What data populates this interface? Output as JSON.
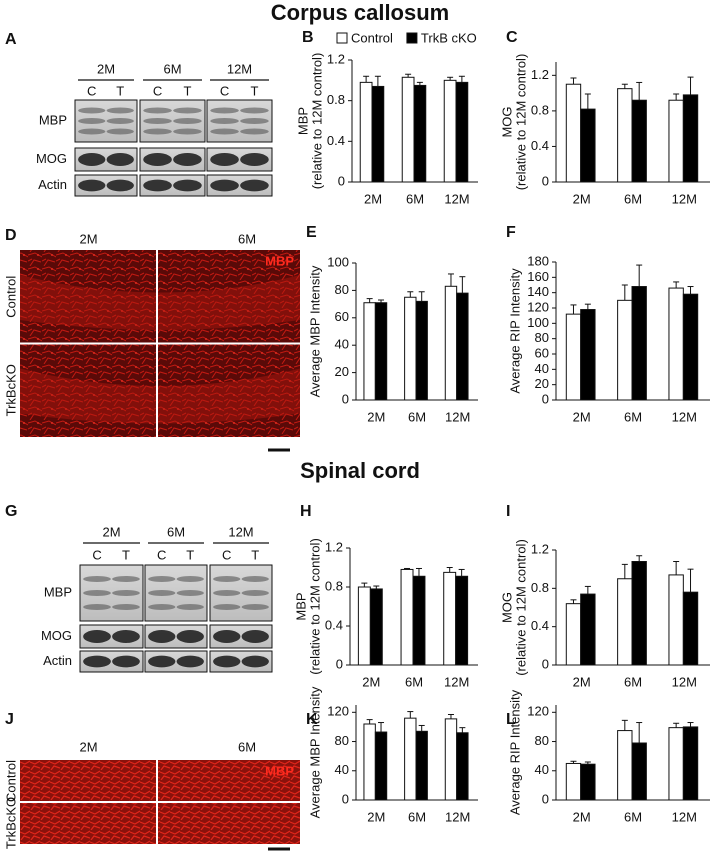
{
  "sections": [
    {
      "title": "Corpus callosum"
    },
    {
      "title": "Spinal cord"
    }
  ],
  "blots": [
    {
      "panel": "A",
      "ages": [
        "2M",
        "6M",
        "12M"
      ],
      "lanes": [
        "C",
        "T"
      ],
      "rows": [
        "MBP",
        "MOG",
        "Actin"
      ]
    },
    {
      "panel": "G",
      "ages": [
        "2M",
        "6M",
        "12M"
      ],
      "lanes": [
        "C",
        "T"
      ],
      "rows": [
        "MBP",
        "MOG",
        "Actin"
      ]
    }
  ],
  "images": [
    {
      "panel": "D",
      "columns": [
        "2M",
        "6M"
      ],
      "rows": [
        "Control",
        "TrkBcKO"
      ],
      "stain": "MBP"
    },
    {
      "panel": "J",
      "columns": [
        "2M",
        "6M"
      ],
      "rows": [
        "Control",
        "TrkBcKO"
      ],
      "stain": "MBP"
    }
  ],
  "chart_data": [
    {
      "type": "bar",
      "panel": "B",
      "ylabel": [
        "MBP",
        "(relative to 12M control)"
      ],
      "categories": [
        "2M",
        "6M",
        "12M"
      ],
      "ylim": [
        0,
        1.2
      ],
      "yticks": [
        0,
        0.4,
        0.8,
        1.2
      ],
      "series": [
        {
          "name": "Control",
          "color": "#ffffff",
          "values": [
            0.98,
            1.03,
            1.0
          ],
          "errors": [
            0.06,
            0.03,
            0.03
          ]
        },
        {
          "name": "TrkB cKO",
          "color": "#000000",
          "values": [
            0.94,
            0.95,
            0.98
          ],
          "errors": [
            0.1,
            0.03,
            0.06
          ]
        }
      ]
    },
    {
      "type": "bar",
      "panel": "C",
      "ylabel": [
        "MOG",
        "(relative to 12M control)"
      ],
      "categories": [
        "2M",
        "6M",
        "12M"
      ],
      "ylim": [
        0,
        1.35
      ],
      "yticks": [
        0,
        0.4,
        0.8,
        1.2
      ],
      "series": [
        {
          "color": "#ffffff",
          "values": [
            1.1,
            1.05,
            0.92
          ],
          "errors": [
            0.07,
            0.05,
            0.07
          ]
        },
        {
          "color": "#000000",
          "values": [
            0.82,
            0.92,
            0.98
          ],
          "errors": [
            0.17,
            0.2,
            0.2
          ]
        }
      ]
    },
    {
      "type": "bar",
      "panel": "E",
      "ylabel": [
        "Average MBP Intensity"
      ],
      "categories": [
        "2M",
        "6M",
        "12M"
      ],
      "ylim": [
        0,
        100
      ],
      "yticks": [
        0,
        20,
        40,
        60,
        80,
        100
      ],
      "series": [
        {
          "color": "#ffffff",
          "values": [
            71,
            75,
            83
          ],
          "errors": [
            3,
            4,
            9
          ]
        },
        {
          "color": "#000000",
          "values": [
            71,
            72,
            78
          ],
          "errors": [
            2,
            7,
            12
          ]
        }
      ]
    },
    {
      "type": "bar",
      "panel": "F",
      "ylabel": [
        "Average RIP Intensity"
      ],
      "categories": [
        "2M",
        "6M",
        "12M"
      ],
      "ylim": [
        0,
        180
      ],
      "yticks": [
        0,
        20,
        40,
        60,
        80,
        100,
        120,
        140,
        160,
        180
      ],
      "series": [
        {
          "color": "#ffffff",
          "values": [
            112,
            130,
            146
          ],
          "errors": [
            12,
            20,
            8
          ]
        },
        {
          "color": "#000000",
          "values": [
            118,
            148,
            138
          ],
          "errors": [
            7,
            28,
            10
          ]
        }
      ]
    },
    {
      "type": "bar",
      "panel": "H",
      "ylabel": [
        "MBP",
        "(relative to 12M control)"
      ],
      "categories": [
        "2M",
        "6M",
        "12M"
      ],
      "ylim": [
        0,
        1.2
      ],
      "yticks": [
        0,
        0.4,
        0.8,
        1.2
      ],
      "series": [
        {
          "color": "#ffffff",
          "values": [
            0.8,
            0.98,
            0.95
          ],
          "errors": [
            0.04,
            0.01,
            0.05
          ]
        },
        {
          "color": "#000000",
          "values": [
            0.78,
            0.91,
            0.91
          ],
          "errors": [
            0.03,
            0.08,
            0.07
          ]
        }
      ]
    },
    {
      "type": "bar",
      "panel": "I",
      "ylabel": [
        "MOG",
        "(relative to 12M control)"
      ],
      "categories": [
        "2M",
        "6M",
        "12M"
      ],
      "ylim": [
        0,
        1.2
      ],
      "yticks": [
        0,
        0.4,
        0.8,
        1.2
      ],
      "series": [
        {
          "color": "#ffffff",
          "values": [
            0.64,
            0.9,
            0.94
          ],
          "errors": [
            0.04,
            0.15,
            0.14
          ]
        },
        {
          "color": "#000000",
          "values": [
            0.74,
            1.08,
            0.76
          ],
          "errors": [
            0.08,
            0.06,
            0.24
          ]
        }
      ]
    },
    {
      "type": "bar",
      "panel": "K",
      "ylabel": [
        "Average MBP Intensity"
      ],
      "categories": [
        "2M",
        "6M",
        "12M"
      ],
      "ylim": [
        0,
        130
      ],
      "yticks": [
        0,
        40,
        80,
        120
      ],
      "series": [
        {
          "color": "#ffffff",
          "values": [
            104,
            112,
            111
          ],
          "errors": [
            6,
            9,
            6
          ]
        },
        {
          "color": "#000000",
          "values": [
            93,
            94,
            92
          ],
          "errors": [
            13,
            8,
            7
          ]
        }
      ]
    },
    {
      "type": "bar",
      "panel": "L",
      "ylabel": [
        "Average RIP Intensity"
      ],
      "categories": [
        "2M",
        "6M",
        "12M"
      ],
      "ylim": [
        0,
        130
      ],
      "yticks": [
        0,
        40,
        80,
        120
      ],
      "series": [
        {
          "color": "#ffffff",
          "values": [
            50,
            95,
            99
          ],
          "errors": [
            3,
            14,
            6
          ]
        },
        {
          "color": "#000000",
          "values": [
            49,
            78,
            100
          ],
          "errors": [
            3,
            28,
            6
          ]
        }
      ]
    }
  ]
}
